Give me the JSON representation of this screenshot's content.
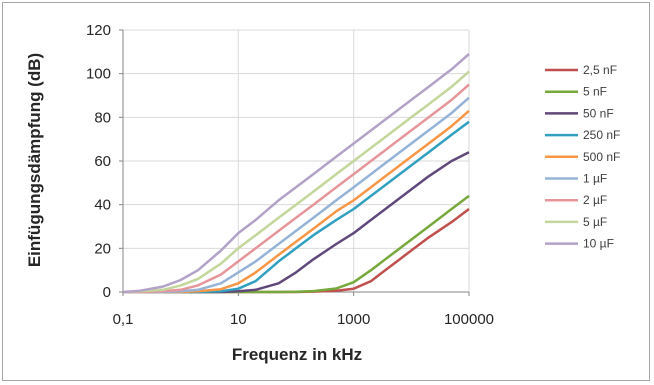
{
  "chart_data": {
    "type": "line",
    "title": "",
    "xlabel": "Frequenz in kHz",
    "ylabel": "Einfügungsdämpfung (dB)",
    "x_scale": "log",
    "xlim": [
      0.1,
      100000
    ],
    "ylim": [
      0,
      120
    ],
    "x_ticks": [
      0.1,
      10,
      1000,
      100000
    ],
    "x_tick_labels": [
      "0,1",
      "10",
      "1000",
      "100000"
    ],
    "y_ticks": [
      0,
      20,
      40,
      60,
      80,
      100,
      120
    ],
    "y_tick_labels": [
      "0",
      "20",
      "40",
      "60",
      "80",
      "100",
      "120"
    ],
    "grid": true,
    "legend_position": "right",
    "x": [
      0.1,
      0.2,
      0.5,
      1,
      2,
      5,
      10,
      20,
      50,
      100,
      200,
      500,
      1000,
      2000,
      5000,
      10000,
      20000,
      50000,
      100000
    ],
    "series": [
      {
        "name": "2,5 nF",
        "color": "#c0504d",
        "values": [
          0,
          0,
          0,
          0,
          0,
          0,
          0,
          0,
          0,
          0,
          0.2,
          0.6,
          1.5,
          5,
          13,
          19,
          25,
          32,
          38
        ]
      },
      {
        "name": "5 nF",
        "color": "#77a83b",
        "values": [
          0,
          0,
          0,
          0,
          0,
          0,
          0,
          0,
          0,
          0.1,
          0.4,
          1.6,
          4.5,
          10,
          18,
          24,
          30,
          38,
          44
        ]
      },
      {
        "name": "50 nF",
        "color": "#60497a",
        "values": [
          0,
          0,
          0,
          0,
          0,
          0,
          0.3,
          1,
          4,
          9,
          15,
          22,
          27,
          33,
          41,
          47,
          53,
          60,
          64
        ]
      },
      {
        "name": "250 nF",
        "color": "#31a0c0",
        "values": [
          0,
          0,
          0,
          0,
          0,
          0.3,
          1.5,
          5,
          14,
          20,
          26,
          33,
          38,
          44,
          52,
          58,
          64,
          72,
          78
        ]
      },
      {
        "name": "500 nF",
        "color": "#f79646",
        "values": [
          0,
          0,
          0,
          0,
          0.3,
          1.3,
          4,
          9,
          17,
          23,
          29,
          37,
          42,
          48,
          56,
          62,
          68,
          76,
          83
        ]
      },
      {
        "name": "1 µF",
        "color": "#95b3d7",
        "values": [
          0,
          0,
          0,
          0.3,
          1,
          4,
          9,
          14,
          22,
          28,
          34,
          42,
          48,
          54,
          62,
          68,
          74,
          82,
          89
        ]
      },
      {
        "name": "2 µF",
        "color": "#e6969a",
        "values": [
          0,
          0,
          0.3,
          1,
          3,
          8,
          14,
          20,
          28,
          34,
          40,
          48,
          54,
          60,
          68,
          74,
          80,
          88,
          95
        ]
      },
      {
        "name": "5 µF",
        "color": "#c3d69b",
        "values": [
          0,
          0.3,
          1,
          3,
          6,
          13,
          20,
          26,
          34,
          40,
          46,
          54,
          60,
          66,
          74,
          80,
          86,
          94,
          101
        ]
      },
      {
        "name": "10 µF",
        "color": "#b3a2c7",
        "values": [
          0,
          0.6,
          2.5,
          5.5,
          10,
          19,
          27,
          33,
          42,
          48,
          54,
          62,
          68,
          74,
          82,
          88,
          94,
          102,
          109
        ]
      }
    ]
  }
}
